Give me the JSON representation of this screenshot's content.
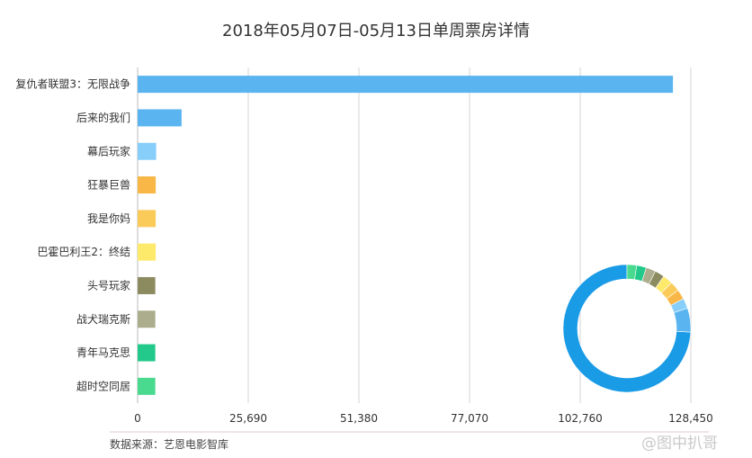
{
  "title": "2018年05月07日-05月13日单周票房详情",
  "source_text": "数据来源：艺恩电影智库",
  "watermark": "@图中扒哥",
  "chart_data": {
    "type": "bar",
    "orientation": "horizontal",
    "title": "2018年05月07日-05月13日单周票房详情",
    "categories": [
      "复仇者联盟3：无限战争",
      "后来的我们",
      "幕后玩家",
      "狂暴巨兽",
      "我是你妈",
      "巴霍巴利王2：终结",
      "头号玩家",
      "战犬瑞克斯",
      "青年马克思",
      "超时空同居"
    ],
    "values": [
      124300,
      10200,
      4300,
      4200,
      4200,
      4200,
      4100,
      4100,
      4100,
      4100
    ],
    "colors": [
      "#59b4f0",
      "#59b4f0",
      "#87cefa",
      "#f8b747",
      "#fbcb5a",
      "#fde96a",
      "#8c8b60",
      "#acad8c",
      "#22c98a",
      "#49d98f"
    ],
    "xlim": [
      0,
      128450
    ],
    "xticks": [
      "0",
      "25,690",
      "51,380",
      "77,070",
      "102,760",
      "128,450"
    ],
    "grid": true,
    "donut": {
      "values": [
        124300,
        10200,
        4300,
        4200,
        4200,
        4200,
        4100,
        4100,
        4100,
        4100
      ],
      "colors": [
        "#1a9be6",
        "#59b4f0",
        "#87cefa",
        "#f8b747",
        "#fbcb5a",
        "#fde96a",
        "#8c8b60",
        "#acad8c",
        "#22c98a",
        "#49d98f"
      ]
    }
  }
}
